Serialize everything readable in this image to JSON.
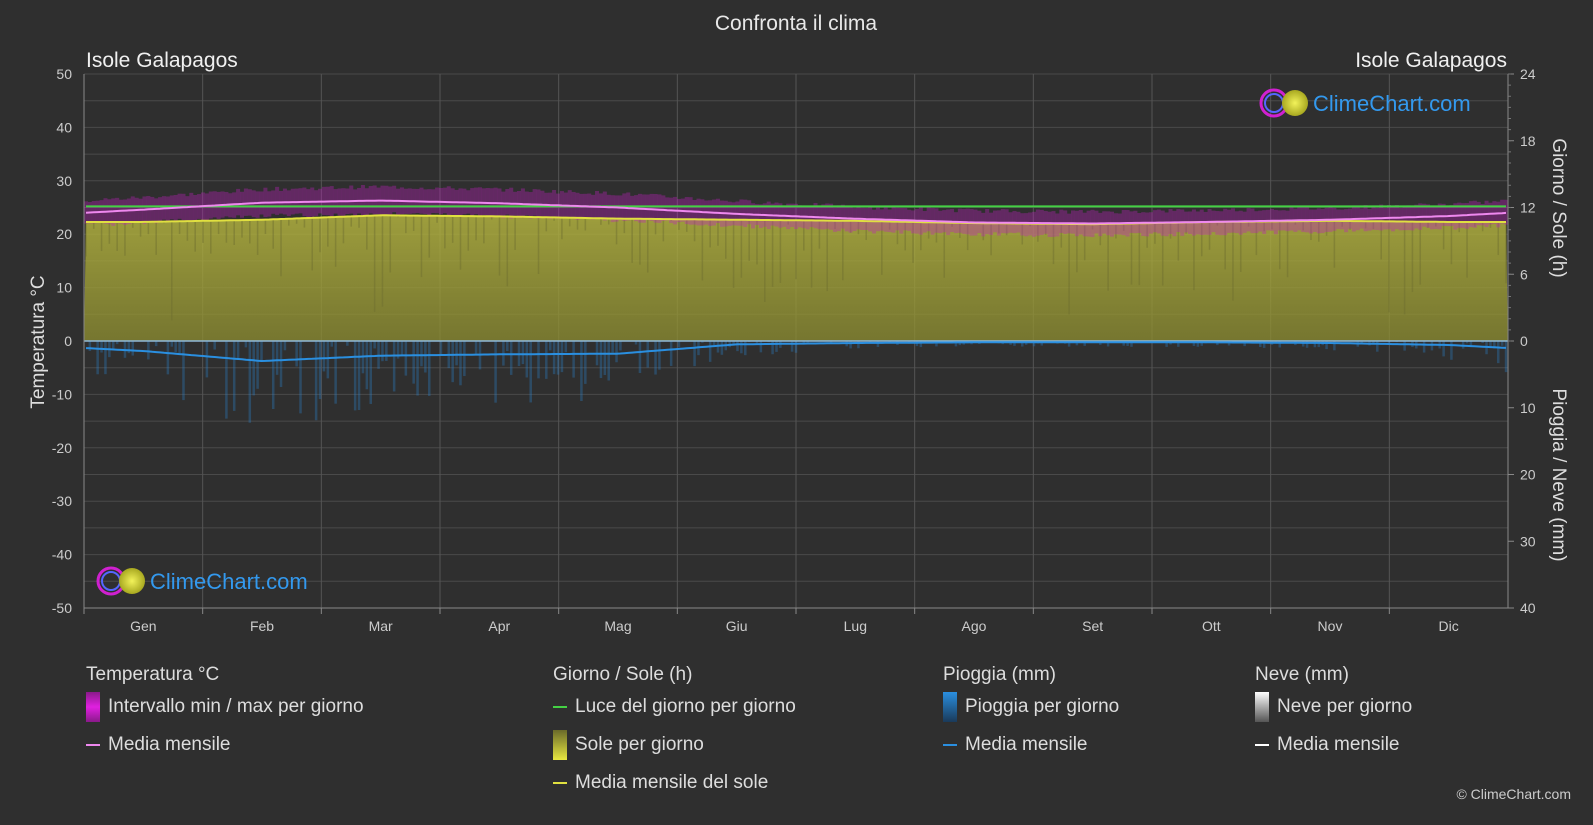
{
  "title": "Confronta il clima",
  "location_left": "Isole Galapagos",
  "location_right": "Isole Galapagos",
  "logo_text": "ClimeChart.com",
  "copyright": "© ClimeChart.com",
  "colors": {
    "background": "#2f2f2f",
    "daylight": "#44d144",
    "sunshine_fill": "#a6a63a",
    "sunshine_line": "#e0e040",
    "temp_range": "#d81bd8",
    "temp_mean": "#ee88ee",
    "rain": "#2a8fe0",
    "snow": "#ffffff",
    "logo_text": "#3399ee"
  },
  "chart_data": {
    "type": "area",
    "categories": [
      "Gen",
      "Feb",
      "Mar",
      "Apr",
      "Mag",
      "Giu",
      "Lug",
      "Ago",
      "Set",
      "Ott",
      "Nov",
      "Dic"
    ],
    "y_left": {
      "label": "Temperatura °C",
      "range": [
        -50,
        50
      ],
      "ticks": [
        50,
        40,
        30,
        20,
        10,
        0,
        -10,
        -20,
        -30,
        -40,
        -50
      ]
    },
    "y_right_top": {
      "label": "Giorno / Sole (h)",
      "range": [
        0,
        24
      ],
      "ticks": [
        24,
        18,
        12,
        6,
        0
      ]
    },
    "y_right_bottom": {
      "label": "Pioggia / Neve (mm)",
      "range": [
        0,
        40
      ],
      "ticks": [
        10,
        20,
        30,
        40
      ]
    },
    "series": [
      {
        "name": "Luce del giorno per giorno",
        "unit": "h",
        "values": [
          12.1,
          12.1,
          12.1,
          12.1,
          12.1,
          12.1,
          12.1,
          12.1,
          12.1,
          12.1,
          12.1,
          12.1
        ]
      },
      {
        "name": "Media mensile del sole",
        "unit": "h",
        "values": [
          10.7,
          10.9,
          11.3,
          11.2,
          11.0,
          10.9,
          10.8,
          10.6,
          10.5,
          10.7,
          10.8,
          10.7
        ]
      },
      {
        "name": "Media mensile",
        "kind": "temperature",
        "unit": "°C",
        "values": [
          24.6,
          25.9,
          26.3,
          25.8,
          25.0,
          23.8,
          22.9,
          22.2,
          22.0,
          22.3,
          22.7,
          23.4
        ]
      },
      {
        "name": "Intervallo min / max per giorno",
        "kind": "temperature_range",
        "unit": "°C",
        "min": [
          22.5,
          23.8,
          24.2,
          23.8,
          23.0,
          22.0,
          21.0,
          20.4,
          20.2,
          20.5,
          21.0,
          21.6
        ],
        "max": [
          26.5,
          28.0,
          28.5,
          28.0,
          27.2,
          25.8,
          24.7,
          24.0,
          23.8,
          24.1,
          24.5,
          25.2
        ]
      },
      {
        "name": "Media mensile",
        "kind": "rain",
        "unit": "mm",
        "values": [
          1.5,
          3.0,
          2.2,
          2.0,
          1.9,
          0.5,
          0.3,
          0.2,
          0.2,
          0.2,
          0.3,
          0.6
        ]
      }
    ],
    "grid": true,
    "legend_position": "bottom"
  },
  "legend": {
    "temperature": {
      "heading": "Temperatura °C",
      "items": [
        "Intervallo min / max per giorno",
        "Media mensile"
      ]
    },
    "sun": {
      "heading": "Giorno / Sole (h)",
      "items": [
        "Luce del giorno per giorno",
        "Sole per giorno",
        "Media mensile del sole"
      ]
    },
    "rain": {
      "heading": "Pioggia (mm)",
      "items": [
        "Pioggia per giorno",
        "Media mensile"
      ]
    },
    "snow": {
      "heading": "Neve (mm)",
      "items": [
        "Neve per giorno",
        "Media mensile"
      ]
    }
  }
}
